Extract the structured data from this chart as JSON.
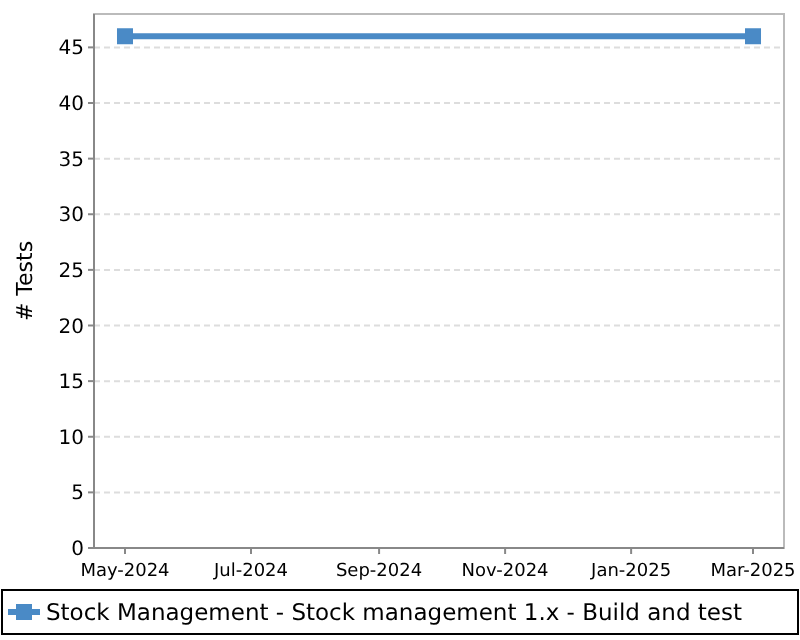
{
  "chart_data": {
    "type": "line",
    "ylabel": "# Tests",
    "x": [
      "2024-05-01",
      "2025-03-01"
    ],
    "series": [
      {
        "name": "Stock Management - Stock management 1.x - Build and test",
        "color": "#4a8ac6",
        "values": [
          46,
          46
        ]
      }
    ],
    "xlim": [
      "2024-04-16",
      "2025-03-16"
    ],
    "xticks": [
      {
        "value": "2024-05-01",
        "label": "May-2024"
      },
      {
        "value": "2024-07-01",
        "label": "Jul-2024"
      },
      {
        "value": "2024-09-01",
        "label": "Sep-2024"
      },
      {
        "value": "2024-11-01",
        "label": "Nov-2024"
      },
      {
        "value": "2025-01-01",
        "label": "Jan-2025"
      },
      {
        "value": "2025-03-01",
        "label": "Mar-2025"
      }
    ],
    "ylim": [
      0,
      48
    ],
    "yticks": [
      0,
      5,
      10,
      15,
      20,
      25,
      30,
      35,
      40,
      45
    ],
    "grid": "y",
    "legend": "bottom",
    "marker": "square",
    "line_style": "solid"
  }
}
